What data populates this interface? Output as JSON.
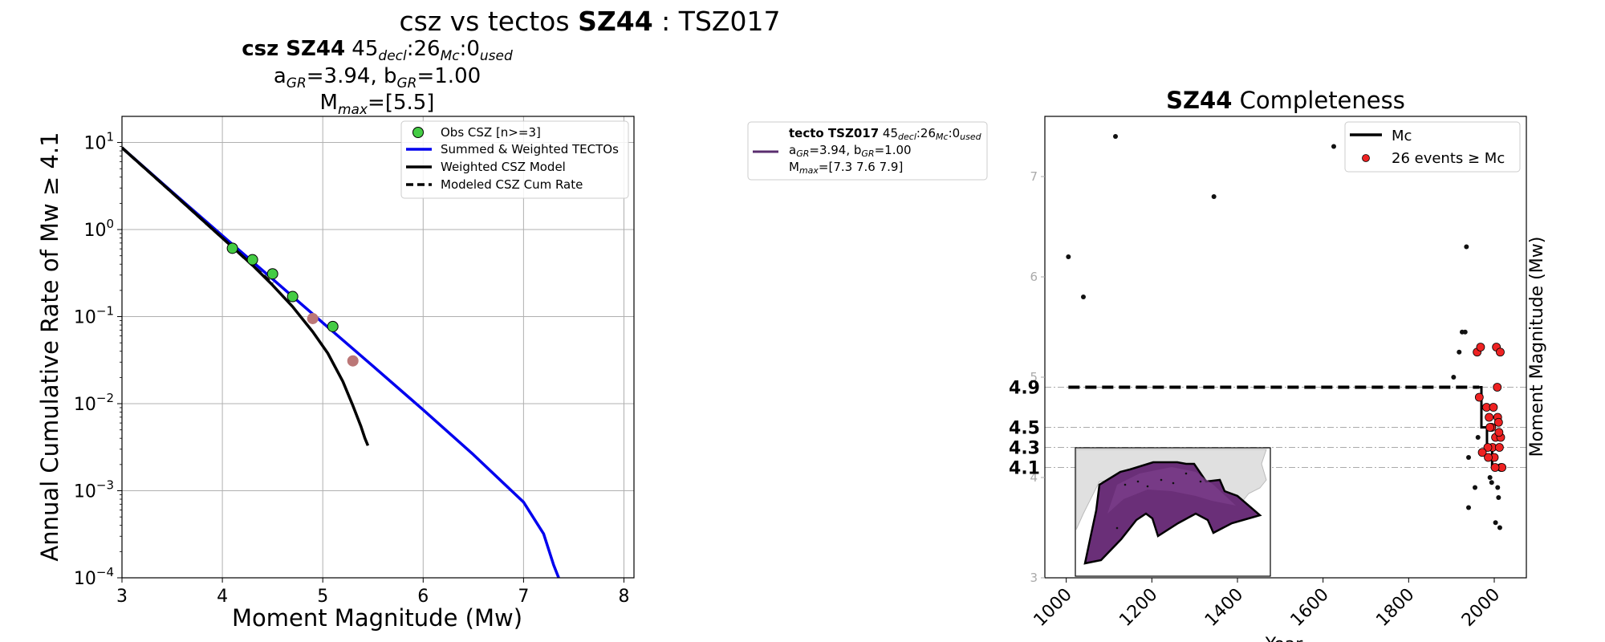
{
  "suptitle": {
    "prefix": "csz vs tectos ",
    "bold": "SZ44",
    "suffix": " : TSZ017"
  },
  "chart_data": [
    {
      "type": "line",
      "title": {
        "bold": "csz SZ44",
        "l1_rest": "  45",
        "sub_decl": "decl",
        "colon1": ":26",
        "sub_mc": "Mc",
        "colon2": ":0",
        "sub_used": "used"
      },
      "a_line": {
        "a": "a",
        "a_sub": "GR",
        "a_val": "=3.94,  b",
        "b_sub": "GR",
        "b_val": "=1.00"
      },
      "mmax_line": {
        "m": "M",
        "m_sub": "max",
        "m_val": "=[5.5]"
      },
      "xlabel": "Moment Magnitude (Mw)",
      "ylabel": "Annual Cumulative Rate of Mw  ≥  4.1",
      "xlim": [
        3,
        8.1
      ],
      "ylim_log10": [
        -4,
        1.3
      ],
      "yscale": "log",
      "xticks": [
        "3",
        "4",
        "5",
        "6",
        "7",
        "8"
      ],
      "yticks": [
        {
          "base": "10",
          "exp": "1"
        },
        {
          "base": "10",
          "exp": "0"
        },
        {
          "base": "10",
          "exp": "−1"
        },
        {
          "base": "10",
          "exp": "−2"
        },
        {
          "base": "10",
          "exp": "−3"
        },
        {
          "base": "10",
          "exp": "−4"
        }
      ],
      "grid": true,
      "legend_position": "top-right",
      "legend": [
        "Obs CSZ [n>=3]",
        "Summed & Weighted TECTOs",
        "Weighted CSZ Model",
        "Modeled CSZ Cum Rate"
      ],
      "series": [
        {
          "name": "Obs CSZ [n>=3]",
          "kind": "scatter",
          "color": "#44cc44",
          "x": [
            4.1,
            4.3,
            4.5,
            4.7,
            5.1
          ],
          "y": [
            0.61,
            0.45,
            0.31,
            0.17,
            0.077
          ]
        },
        {
          "kind": "scatter",
          "color": "#bb7777",
          "x": [
            4.9,
            5.3
          ],
          "y": [
            0.095,
            0.031
          ]
        },
        {
          "name": "Summed & Weighted TECTOs",
          "kind": "line",
          "color": "#0000ee",
          "x": [
            3,
            3.5,
            4,
            4.5,
            5,
            5.5,
            6,
            6.5,
            7,
            7.2,
            7.3,
            7.35
          ],
          "y": [
            8.7,
            2.7,
            0.85,
            0.27,
            0.085,
            0.027,
            0.0085,
            0.0026,
            0.00074,
            0.00032,
            0.00014,
            0.0001
          ]
        },
        {
          "name": "Weighted CSZ Model",
          "kind": "line",
          "color": "#000000",
          "x": [
            3,
            3.5,
            4,
            4.3,
            4.5,
            4.7,
            4.9,
            5.05,
            5.2,
            5.3,
            5.38,
            5.42,
            5.45
          ],
          "y": [
            8.7,
            2.65,
            0.8,
            0.39,
            0.23,
            0.13,
            0.067,
            0.038,
            0.018,
            0.0095,
            0.0055,
            0.004,
            0.0033
          ]
        },
        {
          "name": "Modeled CSZ Cum Rate",
          "kind": "dashed",
          "color": "#000000",
          "x": [
            3,
            3.5,
            4,
            4.5
          ],
          "y": [
            8.7,
            2.65,
            0.8,
            0.24
          ]
        }
      ]
    },
    {
      "type": "legend",
      "entry": {
        "bold": "tecto TSZ017",
        "rest": " 45",
        "sub_decl": "decl",
        "c1": ":26",
        "sub_mc": "Mc",
        "c2": ":0",
        "sub_used": "used"
      },
      "entry_a": {
        "a": "a",
        "a_sub": "GR",
        "a_val": "=3.94,  b",
        "b_sub": "GR",
        "b_val": "=1.00"
      },
      "entry_m": {
        "m": "M",
        "m_sub": "max",
        "m_val": "=[7.3 7.6 7.9]"
      },
      "color": "#5a2d6e"
    },
    {
      "type": "scatter",
      "title": {
        "bold": "SZ44",
        "rest": " Completeness"
      },
      "xlabel": "Year",
      "ylabel": "Moment Magnitude (Mw)",
      "xlim": [
        950,
        2075
      ],
      "ylim": [
        3,
        7.6
      ],
      "xticks": [
        "1000",
        "1200",
        "1400",
        "1600",
        "1800",
        "2000"
      ],
      "yticks": [
        "3",
        "4",
        "5",
        "6",
        "7"
      ],
      "mc_levels": [
        "4.9",
        "4.5",
        "4.3",
        "4.1"
      ],
      "legend_position": "top-right",
      "legend": [
        "Mc",
        "26 events  ≥  Mc"
      ],
      "mc_dashed": {
        "x": [
          1005,
          1965
        ],
        "y": 4.9
      },
      "mc_step": {
        "x": [
          1965,
          1965,
          1970,
          1970,
          1983,
          1983,
          1995,
          1995,
          2015
        ],
        "y": [
          4.9,
          4.9,
          4.9,
          4.5,
          4.5,
          4.3,
          4.3,
          4.1,
          4.1
        ]
      },
      "events_below_mc": {
        "x": [
          1005,
          1040,
          1115,
          1345,
          1625,
          1935,
          1905,
          1918,
          1925,
          1932,
          1940,
          1940,
          1955,
          1962,
          1990,
          1994,
          2000,
          2003,
          2008,
          2010,
          2013
        ],
        "y": [
          6.2,
          5.8,
          7.4,
          6.8,
          7.3,
          6.3,
          5.0,
          5.25,
          5.45,
          5.45,
          4.2,
          3.7,
          3.9,
          4.4,
          4.0,
          3.95,
          4.1,
          3.55,
          3.9,
          3.8,
          3.5
        ]
      },
      "events_above_mc": {
        "x": [
          1960,
          1965,
          1968,
          1982,
          1988,
          1992,
          1994,
          1996,
          1998,
          2000,
          2003,
          2005,
          2007,
          2008,
          2010,
          2012,
          2014,
          2016,
          2018,
          2015,
          1985,
          1990,
          2002,
          1972,
          1986,
          2011
        ],
        "y": [
          5.25,
          4.8,
          5.3,
          4.7,
          4.6,
          4.5,
          4.5,
          4.3,
          4.7,
          4.2,
          4.4,
          5.3,
          4.9,
          4.6,
          4.55,
          4.3,
          5.25,
          4.1,
          4.1,
          4.4,
          4.3,
          4.5,
          4.1,
          4.25,
          4.2,
          4.45
        ]
      },
      "inset_map": {
        "description_hidden": true
      }
    }
  ]
}
